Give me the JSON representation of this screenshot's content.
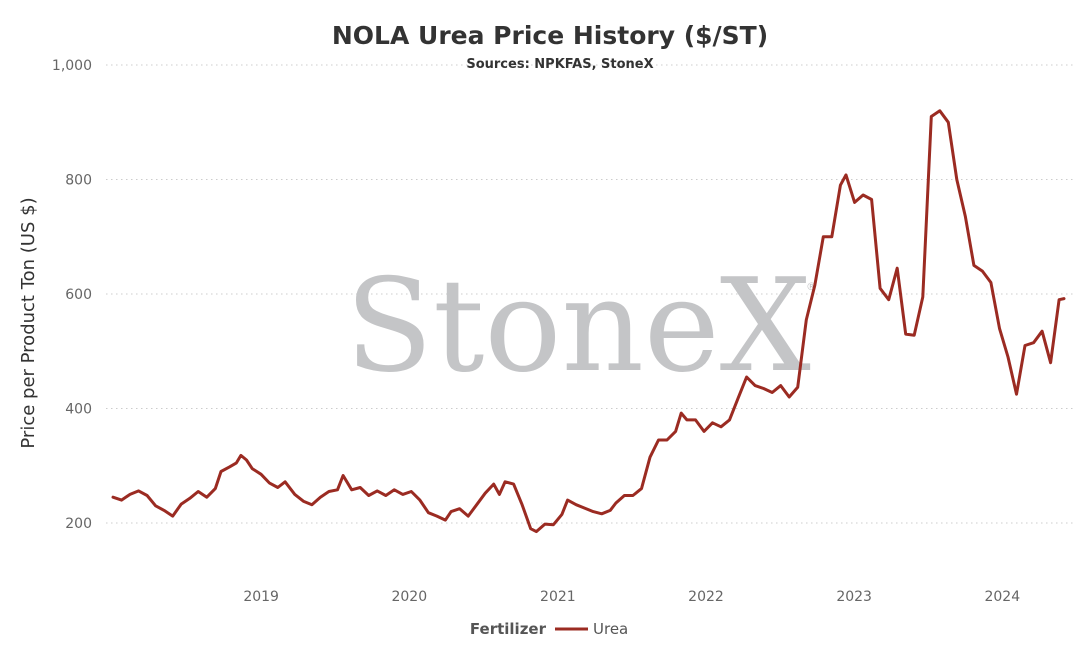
{
  "chart_data": {
    "type": "line",
    "title": "NOLA Urea Price History ($/ST)",
    "subtitle": "Sources: NPKFAS, StoneX",
    "ylabel": "Price per Product Ton (US $)",
    "xlabel": "",
    "ylim": [
      100,
      1000
    ],
    "yticks": [
      200,
      400,
      600,
      800,
      1000
    ],
    "ytick_labels": [
      "200",
      "400",
      "600",
      "800",
      "1,000"
    ],
    "xlim": [
      "2018-01-01",
      "2024-06-01"
    ],
    "xtick_labels": [
      "2019",
      "2020",
      "2021",
      "2022",
      "2023",
      "2024"
    ],
    "grid": true,
    "legend": {
      "title": "Fertilizer",
      "position": "bottom-center"
    },
    "watermark": "StoneX",
    "colors": {
      "urea": "#9b2b22",
      "grid": "#cccccc",
      "watermark": "#c4c5c7"
    },
    "series": [
      {
        "name": "Urea",
        "points": [
          [
            "2018-01-01",
            245
          ],
          [
            "2018-01-22",
            240
          ],
          [
            "2018-02-12",
            250
          ],
          [
            "2018-03-05",
            256
          ],
          [
            "2018-03-26",
            248
          ],
          [
            "2018-04-16",
            230
          ],
          [
            "2018-05-07",
            222
          ],
          [
            "2018-05-28",
            212
          ],
          [
            "2018-06-18",
            233
          ],
          [
            "2018-07-09",
            243
          ],
          [
            "2018-07-30",
            255
          ],
          [
            "2018-08-20",
            245
          ],
          [
            "2018-09-10",
            260
          ],
          [
            "2018-09-24",
            290
          ],
          [
            "2018-10-15",
            298
          ],
          [
            "2018-11-01",
            305
          ],
          [
            "2018-11-12",
            318
          ],
          [
            "2018-11-26",
            310
          ],
          [
            "2018-12-10",
            295
          ],
          [
            "2019-01-01",
            285
          ],
          [
            "2019-01-21",
            270
          ],
          [
            "2019-02-11",
            262
          ],
          [
            "2019-03-01",
            272
          ],
          [
            "2019-03-25",
            250
          ],
          [
            "2019-04-15",
            238
          ],
          [
            "2019-05-06",
            232
          ],
          [
            "2019-05-27",
            245
          ],
          [
            "2019-06-17",
            255
          ],
          [
            "2019-07-08",
            258
          ],
          [
            "2019-07-22",
            283
          ],
          [
            "2019-08-12",
            258
          ],
          [
            "2019-09-02",
            262
          ],
          [
            "2019-09-23",
            248
          ],
          [
            "2019-10-14",
            256
          ],
          [
            "2019-11-04",
            248
          ],
          [
            "2019-11-25",
            258
          ],
          [
            "2019-12-16",
            250
          ],
          [
            "2020-01-06",
            255
          ],
          [
            "2020-01-27",
            240
          ],
          [
            "2020-02-17",
            218
          ],
          [
            "2020-03-09",
            212
          ],
          [
            "2020-03-30",
            205
          ],
          [
            "2020-04-13",
            220
          ],
          [
            "2020-05-04",
            225
          ],
          [
            "2020-05-25",
            212
          ],
          [
            "2020-06-15",
            232
          ],
          [
            "2020-07-06",
            252
          ],
          [
            "2020-07-27",
            268
          ],
          [
            "2020-08-10",
            250
          ],
          [
            "2020-08-24",
            272
          ],
          [
            "2020-09-14",
            268
          ],
          [
            "2020-10-05",
            232
          ],
          [
            "2020-10-26",
            190
          ],
          [
            "2020-11-09",
            185
          ],
          [
            "2020-11-30",
            198
          ],
          [
            "2020-12-21",
            197
          ],
          [
            "2021-01-11",
            215
          ],
          [
            "2021-01-25",
            240
          ],
          [
            "2021-02-15",
            232
          ],
          [
            "2021-03-08",
            226
          ],
          [
            "2021-03-29",
            220
          ],
          [
            "2021-04-19",
            216
          ],
          [
            "2021-05-10",
            222
          ],
          [
            "2021-05-24",
            235
          ],
          [
            "2021-06-14",
            248
          ],
          [
            "2021-07-05",
            248
          ],
          [
            "2021-07-26",
            260
          ],
          [
            "2021-08-16",
            315
          ],
          [
            "2021-09-06",
            345
          ],
          [
            "2021-09-27",
            345
          ],
          [
            "2021-10-18",
            360
          ],
          [
            "2021-11-01",
            392
          ],
          [
            "2021-11-15",
            380
          ],
          [
            "2021-12-06",
            380
          ],
          [
            "2021-12-27",
            360
          ],
          [
            "2022-01-17",
            375
          ],
          [
            "2022-02-07",
            368
          ],
          [
            "2022-02-28",
            380
          ],
          [
            "2022-03-21",
            418
          ],
          [
            "2022-04-11",
            455
          ],
          [
            "2022-05-02",
            440
          ],
          [
            "2022-05-23",
            435
          ],
          [
            "2022-06-13",
            428
          ],
          [
            "2022-07-04",
            440
          ],
          [
            "2022-07-25",
            420
          ],
          [
            "2022-08-15",
            437
          ],
          [
            "2022-09-05",
            555
          ],
          [
            "2022-09-26",
            615
          ],
          [
            "2022-10-17",
            700
          ],
          [
            "2022-11-07",
            700
          ],
          [
            "2022-11-28",
            790
          ],
          [
            "2022-12-12",
            808
          ],
          [
            "2023-01-02",
            760
          ],
          [
            "2023-01-23",
            773
          ],
          [
            "2023-02-13",
            765
          ],
          [
            "2023-03-06",
            610
          ],
          [
            "2023-03-27",
            590
          ],
          [
            "2023-04-17",
            645
          ],
          [
            "2023-05-08",
            530
          ],
          [
            "2023-05-29",
            528
          ],
          [
            "2023-06-19",
            595
          ],
          [
            "2023-07-10",
            910
          ],
          [
            "2023-07-31",
            920
          ],
          [
            "2023-08-21",
            900
          ],
          [
            "2023-09-11",
            800
          ],
          [
            "2023-10-02",
            735
          ],
          [
            "2023-10-23",
            650
          ],
          [
            "2023-11-13",
            640
          ],
          [
            "2023-12-04",
            620
          ],
          [
            "2023-12-25",
            540
          ],
          [
            "2024-01-15",
            490
          ],
          [
            "2024-02-05",
            425
          ],
          [
            "2024-02-26",
            510
          ],
          [
            "2024-03-18",
            515
          ],
          [
            "2024-04-08",
            535
          ],
          [
            "2024-04-29",
            480
          ],
          [
            "2024-05-20",
            590
          ],
          [
            "2024-06-01",
            592
          ]
        ]
      }
    ]
  }
}
